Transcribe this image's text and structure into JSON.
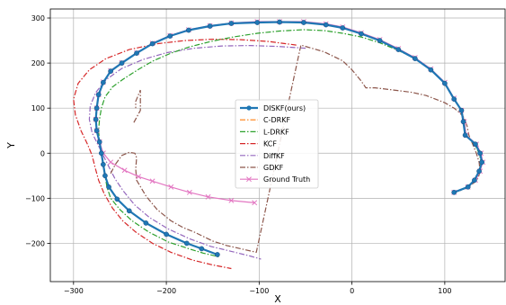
{
  "chart_data": {
    "type": "line",
    "title": "",
    "xlabel": "X",
    "ylabel": "Y",
    "xlim": [
      -325,
      165
    ],
    "ylim": [
      -285,
      320
    ],
    "grid": true,
    "legend_position": "center",
    "xticks": [
      -300,
      -200,
      -100,
      0,
      100
    ],
    "xtick_labels": [
      "−300",
      "−200",
      "−100",
      "0",
      "100"
    ],
    "yticks": [
      -200,
      -100,
      0,
      100,
      200,
      300
    ],
    "ytick_labels": [
      "−200",
      "−100",
      "0",
      "100",
      "200",
      "300"
    ],
    "series": [
      {
        "name": "DISKF(ours)",
        "color": "#1f77b4",
        "style": "solid",
        "width": 2.2,
        "marker": "circle",
        "x": [
          110,
          125,
          132,
          137,
          140,
          138,
          133,
          122,
          120,
          118,
          110,
          100,
          85,
          68,
          50,
          30,
          10,
          -10,
          -28,
          -52,
          -78,
          -102,
          -130,
          -153,
          -176,
          -196,
          -215,
          -232,
          -248,
          -260,
          -268,
          -273,
          -275,
          -276,
          -275,
          -272,
          -270,
          -268,
          -266,
          -262,
          -253,
          -240,
          -222,
          -200,
          -178,
          -162,
          -145
        ],
        "y": [
          -87,
          -75,
          -60,
          -40,
          -20,
          0,
          20,
          40,
          70,
          95,
          120,
          155,
          185,
          210,
          230,
          250,
          265,
          278,
          285,
          290,
          291,
          290,
          288,
          282,
          273,
          260,
          243,
          222,
          200,
          182,
          157,
          130,
          100,
          75,
          50,
          25,
          0,
          -25,
          -50,
          -75,
          -102,
          -128,
          -155,
          -180,
          -200,
          -212,
          -225
        ]
      },
      {
        "name": "C-DRKF",
        "color": "#ff7f0e",
        "style": "dashdot",
        "width": 1.2,
        "marker": "none",
        "x": [
          110,
          125,
          132,
          137,
          140,
          138,
          133,
          122,
          120,
          118,
          110,
          100,
          85,
          68,
          50,
          30,
          10,
          -10,
          -28,
          -52,
          -78,
          -102,
          -130,
          -153,
          -176,
          -196,
          -215,
          -232,
          -248,
          -260,
          -268,
          -273,
          -275,
          -276,
          -275,
          -272,
          -270,
          -268,
          -266,
          -262,
          -253,
          -240,
          -222,
          -200,
          -178,
          -162,
          -145
        ],
        "y": [
          -87,
          -75,
          -60,
          -40,
          -20,
          0,
          20,
          40,
          70,
          95,
          120,
          155,
          185,
          210,
          230,
          250,
          265,
          278,
          285,
          290,
          291,
          290,
          288,
          282,
          273,
          260,
          243,
          222,
          200,
          182,
          157,
          130,
          100,
          75,
          50,
          25,
          0,
          -25,
          -50,
          -75,
          -102,
          -128,
          -155,
          -180,
          -200,
          -212,
          -225
        ]
      },
      {
        "name": "L-DRKF",
        "color": "#2ca02c",
        "style": "dashdot",
        "width": 1.2,
        "marker": "none",
        "x": [
          110,
          125,
          133,
          137,
          139,
          137,
          132,
          123,
          121,
          118,
          110,
          100,
          85,
          68,
          50,
          30,
          10,
          -10,
          -30,
          -52,
          -78,
          -102,
          -128,
          -152,
          -175,
          -195,
          -214,
          -230,
          -246,
          -258,
          -266,
          -270,
          -272,
          -273,
          -272,
          -270,
          -268,
          -266,
          -264,
          -260,
          -250,
          -237,
          -219,
          -198,
          -176,
          -160,
          -143
        ],
        "y": [
          -87,
          -75,
          -60,
          -40,
          -20,
          0,
          20,
          40,
          70,
          95,
          120,
          155,
          185,
          210,
          228,
          245,
          258,
          266,
          272,
          274,
          271,
          266,
          258,
          248,
          236,
          222,
          205,
          186,
          165,
          147,
          125,
          100,
          75,
          50,
          25,
          0,
          -25,
          -50,
          -75,
          -100,
          -125,
          -150,
          -175,
          -197,
          -212,
          -222,
          -230
        ]
      },
      {
        "name": "KCF",
        "color": "#d62728",
        "style": "dashdot",
        "width": 1.2,
        "marker": "none",
        "x": [
          -60,
          -90,
          -120,
          -150,
          -180,
          -210,
          -240,
          -265,
          -283,
          -295,
          -300,
          -298,
          -292,
          -285,
          -280,
          -277,
          -273,
          -267,
          -258,
          -247,
          -233,
          -215,
          -195,
          -172,
          -150,
          -130
        ],
        "y": [
          240,
          248,
          252,
          253,
          250,
          243,
          230,
          210,
          185,
          155,
          120,
          85,
          50,
          20,
          -5,
          -30,
          -60,
          -90,
          -122,
          -150,
          -175,
          -200,
          -220,
          -237,
          -248,
          -256
        ]
      },
      {
        "name": "DiffKF",
        "color": "#9467bd",
        "style": "dashdot",
        "width": 1.2,
        "marker": "none",
        "x": [
          -50,
          -80,
          -110,
          -140,
          -170,
          -200,
          -225,
          -248,
          -265,
          -276,
          -282,
          -283,
          -280,
          -274,
          -268,
          -262,
          -255,
          -246,
          -234,
          -218,
          -198,
          -175,
          -152,
          -130,
          -110,
          -98
        ],
        "y": [
          233,
          237,
          239,
          238,
          233,
          223,
          208,
          188,
          163,
          135,
          105,
          75,
          45,
          20,
          -5,
          -30,
          -58,
          -85,
          -115,
          -143,
          -168,
          -190,
          -207,
          -218,
          -228,
          -235
        ]
      },
      {
        "name": "GDKF",
        "color": "#8c564b",
        "style": "dashdot",
        "width": 1.2,
        "marker": "none",
        "x": [
          -260,
          -255,
          -248,
          -240,
          -234,
          -232,
          -233,
          -232,
          -222,
          -210,
          -195,
          -182,
          -170,
          -160,
          -150,
          -135,
          -118,
          -103,
          -55,
          -30,
          -10,
          0,
          10,
          15,
          25,
          45,
          65,
          80,
          90,
          100,
          110,
          116,
          121,
          124,
          126,
          130,
          134,
          137,
          138,
          136,
          132,
          125,
          118,
          110
        ],
        "y": [
          -45,
          -25,
          -5,
          2,
          0,
          -10,
          -35,
          -60,
          -95,
          -125,
          -150,
          -165,
          -175,
          -185,
          -195,
          -205,
          -213,
          -220,
          240,
          225,
          205,
          185,
          160,
          145,
          145,
          140,
          135,
          128,
          120,
          112,
          100,
          90,
          78,
          60,
          40,
          20,
          0,
          -20,
          -40,
          -55,
          -65,
          -75,
          -82,
          -87
        ]
      },
      {
        "name": "Ground Truth",
        "color": "#e377c2",
        "style": "solid",
        "width": 1.2,
        "marker": "x",
        "x": [
          110,
          125,
          133,
          138,
          141,
          139,
          134,
          123,
          121,
          118,
          110,
          100,
          85,
          68,
          50,
          30,
          10,
          -10,
          -28,
          -52,
          -78,
          -102,
          -130,
          -153,
          -176,
          -196,
          -215,
          -232,
          -248,
          -260,
          -268,
          -273,
          -275,
          -276,
          -275,
          -272,
          -268,
          -260,
          -245,
          -230,
          -215,
          -195,
          -175,
          -155,
          -130,
          -105
        ],
        "y": [
          -87,
          -75,
          -60,
          -40,
          -20,
          0,
          20,
          40,
          70,
          95,
          122,
          157,
          187,
          212,
          232,
          252,
          267,
          280,
          287,
          292,
          292,
          292,
          289,
          283,
          274,
          261,
          244,
          223,
          201,
          183,
          158,
          130,
          100,
          75,
          50,
          25,
          0,
          -20,
          -38,
          -52,
          -62,
          -75,
          -87,
          -97,
          -105,
          -110
        ]
      }
    ]
  },
  "extra_paths": [
    {
      "series": "GDKF",
      "x": [
        -235,
        -228,
        -228,
        -233,
        -233
      ],
      "y": [
        68,
        95,
        140,
        115,
        100
      ]
    }
  ]
}
